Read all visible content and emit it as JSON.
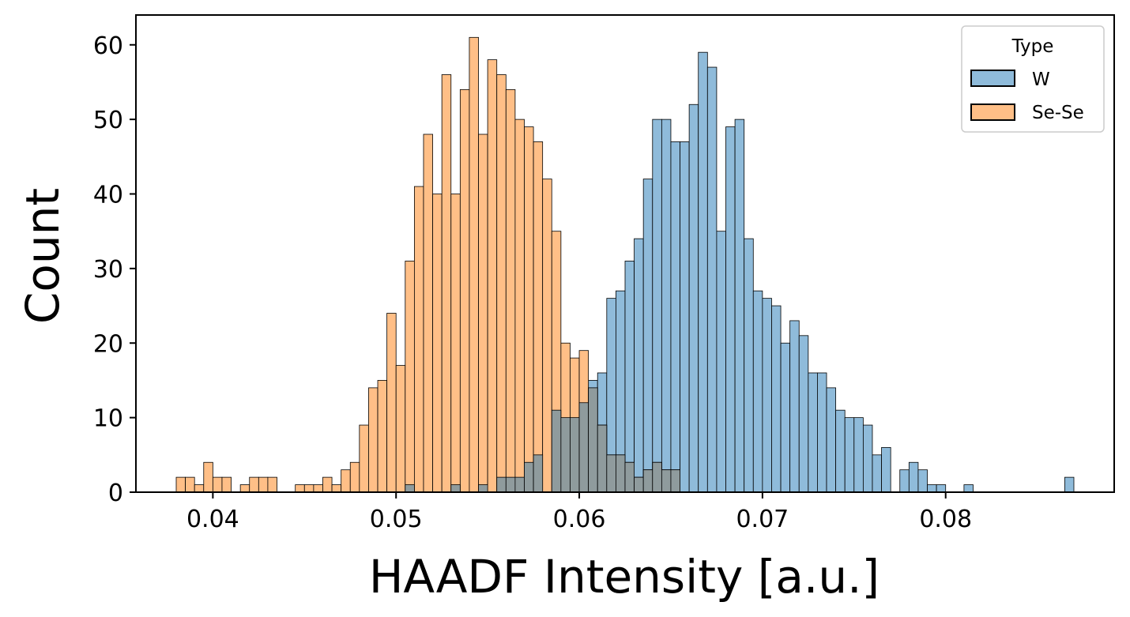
{
  "chart_data": {
    "type": "histogram",
    "xlabel": "HAADF Intensity [a.u.]",
    "ylabel": "Count",
    "xlim": [
      0.0358,
      0.0892
    ],
    "ylim": [
      0,
      64
    ],
    "bin_width": 0.0005,
    "xticks": [
      0.04,
      0.05,
      0.06,
      0.07,
      0.08
    ],
    "xtick_labels": [
      "0.04",
      "0.05",
      "0.06",
      "0.07",
      "0.08"
    ],
    "yticks": [
      0,
      10,
      20,
      30,
      40,
      50,
      60
    ],
    "ytick_labels": [
      "0",
      "10",
      "20",
      "30",
      "40",
      "50",
      "60"
    ],
    "grid": false,
    "legend": {
      "title": "Type",
      "position": "top-right"
    },
    "series": [
      {
        "name": "W",
        "color": "#1f77b4",
        "bins": [
          [
            0.0505,
            1
          ],
          [
            0.053,
            1
          ],
          [
            0.0545,
            1
          ],
          [
            0.0555,
            2
          ],
          [
            0.056,
            2
          ],
          [
            0.0565,
            2
          ],
          [
            0.057,
            4
          ],
          [
            0.0575,
            5
          ],
          [
            0.0585,
            11
          ],
          [
            0.059,
            10
          ],
          [
            0.0595,
            10
          ],
          [
            0.06,
            12
          ],
          [
            0.0605,
            15
          ],
          [
            0.061,
            16
          ],
          [
            0.0615,
            26
          ],
          [
            0.062,
            27
          ],
          [
            0.0625,
            31
          ],
          [
            0.063,
            34
          ],
          [
            0.0635,
            42
          ],
          [
            0.064,
            50
          ],
          [
            0.0645,
            50
          ],
          [
            0.065,
            47
          ],
          [
            0.0655,
            47
          ],
          [
            0.066,
            52
          ],
          [
            0.0665,
            59
          ],
          [
            0.067,
            57
          ],
          [
            0.0675,
            35
          ],
          [
            0.068,
            49
          ],
          [
            0.0685,
            50
          ],
          [
            0.069,
            34
          ],
          [
            0.0695,
            27
          ],
          [
            0.07,
            26
          ],
          [
            0.0705,
            25
          ],
          [
            0.071,
            20
          ],
          [
            0.0715,
            23
          ],
          [
            0.072,
            21
          ],
          [
            0.0725,
            16
          ],
          [
            0.073,
            16
          ],
          [
            0.0735,
            14
          ],
          [
            0.074,
            11
          ],
          [
            0.0745,
            10
          ],
          [
            0.075,
            10
          ],
          [
            0.0755,
            9
          ],
          [
            0.076,
            5
          ],
          [
            0.0765,
            6
          ],
          [
            0.0775,
            3
          ],
          [
            0.078,
            4
          ],
          [
            0.0785,
            3
          ],
          [
            0.079,
            1
          ],
          [
            0.0795,
            1
          ],
          [
            0.081,
            1
          ],
          [
            0.0865,
            2
          ]
        ]
      },
      {
        "name": "Se-Se",
        "color": "#ff7f0e",
        "bins": [
          [
            0.038,
            2
          ],
          [
            0.0385,
            2
          ],
          [
            0.039,
            1
          ],
          [
            0.0395,
            4
          ],
          [
            0.04,
            2
          ],
          [
            0.0405,
            2
          ],
          [
            0.0415,
            1
          ],
          [
            0.042,
            2
          ],
          [
            0.0425,
            2
          ],
          [
            0.043,
            2
          ],
          [
            0.0445,
            1
          ],
          [
            0.045,
            1
          ],
          [
            0.0455,
            1
          ],
          [
            0.046,
            2
          ],
          [
            0.0465,
            1
          ],
          [
            0.047,
            3
          ],
          [
            0.0475,
            4
          ],
          [
            0.048,
            9
          ],
          [
            0.0485,
            14
          ],
          [
            0.049,
            15
          ],
          [
            0.0495,
            24
          ],
          [
            0.05,
            17
          ],
          [
            0.0505,
            31
          ],
          [
            0.051,
            41
          ],
          [
            0.0515,
            48
          ],
          [
            0.052,
            40
          ],
          [
            0.0525,
            56
          ],
          [
            0.053,
            40
          ],
          [
            0.0535,
            54
          ],
          [
            0.054,
            61
          ],
          [
            0.0545,
            48
          ],
          [
            0.055,
            58
          ],
          [
            0.0555,
            56
          ],
          [
            0.056,
            54
          ],
          [
            0.0565,
            50
          ],
          [
            0.057,
            49
          ],
          [
            0.0575,
            47
          ],
          [
            0.058,
            42
          ],
          [
            0.0585,
            35
          ],
          [
            0.059,
            20
          ],
          [
            0.0595,
            18
          ],
          [
            0.06,
            19
          ],
          [
            0.0605,
            14
          ],
          [
            0.061,
            9
          ],
          [
            0.0615,
            5
          ],
          [
            0.062,
            5
          ],
          [
            0.0625,
            4
          ],
          [
            0.063,
            2
          ],
          [
            0.0635,
            3
          ],
          [
            0.064,
            4
          ],
          [
            0.0645,
            3
          ],
          [
            0.065,
            3
          ]
        ]
      }
    ]
  }
}
